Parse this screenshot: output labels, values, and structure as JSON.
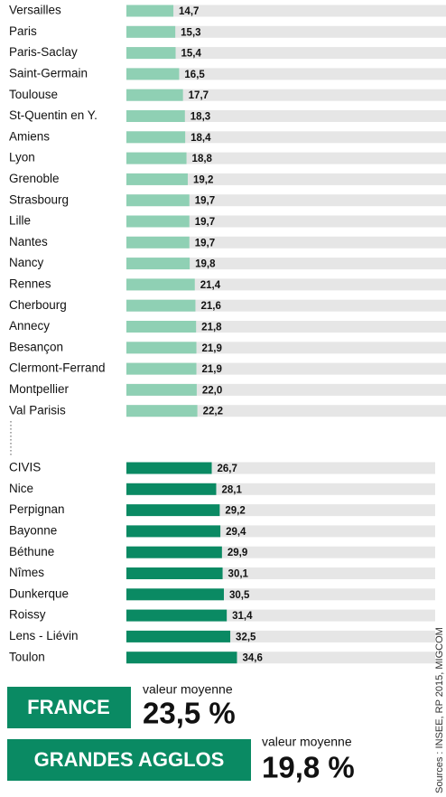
{
  "chart_data": [
    {
      "type": "bar",
      "orientation": "horizontal",
      "color": "#8fd0b4",
      "xlim": [
        0,
        100
      ],
      "categories": [
        "Versailles",
        "Paris",
        "Paris-Saclay",
        "Saint-Germain",
        "Toulouse",
        "St-Quentin en Y.",
        "Amiens",
        "Lyon",
        "Grenoble",
        "Strasbourg",
        "Lille",
        "Nantes",
        "Nancy",
        "Rennes",
        "Cherbourg",
        "Annecy",
        "Besançon",
        "Clermont-Ferrand",
        "Montpellier",
        "Val Parisis"
      ],
      "values": [
        14.7,
        15.3,
        15.4,
        16.5,
        17.7,
        18.3,
        18.4,
        18.8,
        19.2,
        19.7,
        19.7,
        19.7,
        19.8,
        21.4,
        21.6,
        21.8,
        21.9,
        21.9,
        22.0,
        22.2
      ],
      "value_labels": [
        "14,7",
        "15,3",
        "15,4",
        "16,5",
        "17,7",
        "18,3",
        "18,4",
        "18,8",
        "19,2",
        "19,7",
        "19,7",
        "19,7",
        "19,8",
        "21,4",
        "21,6",
        "21,8",
        "21,9",
        "21,9",
        "22,0",
        "22,2"
      ]
    },
    {
      "type": "bar",
      "orientation": "horizontal",
      "color": "#0a8a63",
      "xlim": [
        0,
        100
      ],
      "categories": [
        "CIVIS",
        "Nice",
        "Perpignan",
        "Bayonne",
        "Béthune",
        "Nîmes",
        "Dunkerque",
        "Roissy",
        "Lens - Liévin",
        "Toulon"
      ],
      "values": [
        26.7,
        28.1,
        29.2,
        29.4,
        29.9,
        30.1,
        30.5,
        31.4,
        32.5,
        34.6
      ],
      "value_labels": [
        "26,7",
        "28,1",
        "29,2",
        "29,4",
        "29,9",
        "30,1",
        "30,5",
        "31,4",
        "32,5",
        "34,6"
      ]
    }
  ],
  "summary": [
    {
      "label": "FRANCE",
      "caption": "valeur moyenne",
      "value": "23,5 %"
    },
    {
      "label": "GRANDES AGGLOS",
      "caption": "valeur moyenne",
      "value": "19,8 %"
    }
  ],
  "source": "Sources : INSEE, RP 2015, MIGCOM"
}
